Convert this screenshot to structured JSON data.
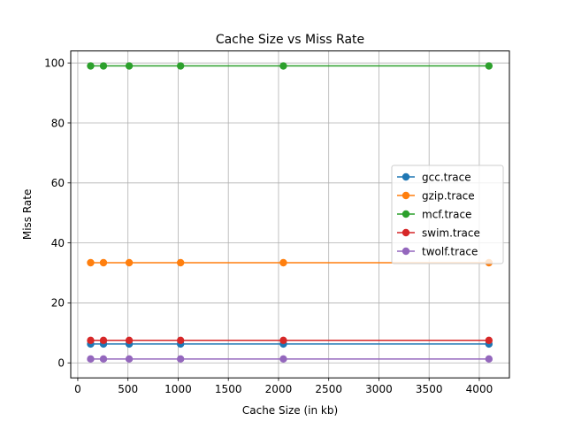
{
  "chart_data": {
    "type": "line",
    "title": "Cache Size vs Miss Rate",
    "xlabel": "Cache Size (in kb)",
    "ylabel": "Miss Rate",
    "xlim": [
      -70,
      4300
    ],
    "ylim": [
      -5,
      104
    ],
    "xticks": [
      0,
      500,
      1000,
      1500,
      2000,
      2500,
      3000,
      3500,
      4000
    ],
    "yticks": [
      0,
      20,
      40,
      60,
      80,
      100
    ],
    "grid": true,
    "legend_position": "center-right",
    "x": [
      128,
      256,
      512,
      1024,
      2048,
      4096
    ],
    "series": [
      {
        "name": "gcc.trace",
        "color": "#1f77b4",
        "values": [
          6.3,
          6.3,
          6.3,
          6.3,
          6.3,
          6.3
        ]
      },
      {
        "name": "gzip.trace",
        "color": "#ff7f0e",
        "values": [
          33.4,
          33.4,
          33.4,
          33.4,
          33.4,
          33.4
        ]
      },
      {
        "name": "mcf.trace",
        "color": "#2ca02c",
        "values": [
          99.0,
          99.0,
          99.0,
          99.0,
          99.0,
          99.0
        ]
      },
      {
        "name": "swim.trace",
        "color": "#d62728",
        "values": [
          7.5,
          7.5,
          7.5,
          7.5,
          7.5,
          7.5
        ]
      },
      {
        "name": "twolf.trace",
        "color": "#9467bd",
        "values": [
          1.3,
          1.3,
          1.3,
          1.3,
          1.3,
          1.3
        ]
      }
    ]
  }
}
